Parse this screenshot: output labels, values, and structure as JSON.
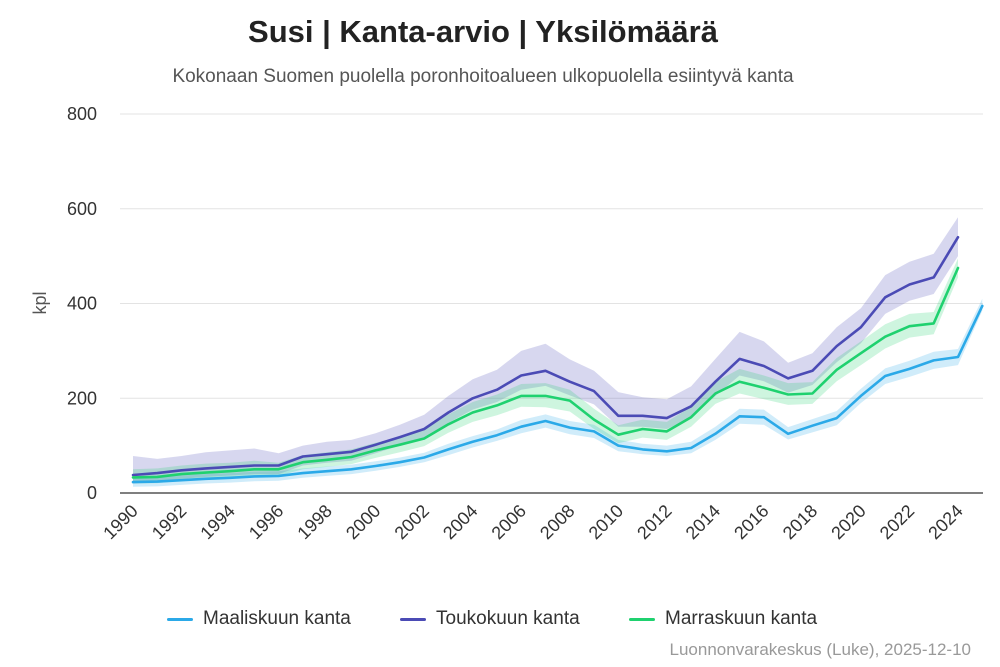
{
  "chart_data": {
    "type": "line",
    "title": "Susi | Kanta-arvio | Yksilömäärä",
    "subtitle": "Kokonaan Suomen puolella poronhoitoalueen ulkopuolella esiintyvä kanta",
    "ylabel": "kpl",
    "xlabel": "",
    "ylim": [
      0,
      800
    ],
    "yticks": [
      "0",
      "200",
      "400",
      "600",
      "800"
    ],
    "xticks": [
      "1990",
      "1992",
      "1994",
      "1996",
      "1998",
      "2000",
      "2002",
      "2004",
      "2006",
      "2008",
      "2010",
      "2012",
      "2014",
      "2016",
      "2018",
      "2020",
      "2022",
      "2024"
    ],
    "grid": true,
    "legend_position": "bottom",
    "series": [
      {
        "name": "Maaliskuun kanta",
        "color": "#2ba9e8",
        "x": [
          1990,
          1991,
          1992,
          1993,
          1994,
          1995,
          1996,
          1997,
          1998,
          1999,
          2000,
          2001,
          2002,
          2003,
          2004,
          2005,
          2006,
          2007,
          2008,
          2009,
          2010,
          2011,
          2012,
          2013,
          2014,
          2015,
          2016,
          2017,
          2018,
          2019,
          2020,
          2021,
          2022,
          2023,
          2024,
          2025
        ],
        "values": [
          23,
          24,
          27,
          30,
          32,
          35,
          36,
          42,
          46,
          50,
          57,
          65,
          75,
          92,
          108,
          122,
          140,
          152,
          138,
          130,
          100,
          92,
          88,
          95,
          125,
          162,
          160,
          125,
          142,
          158,
          205,
          247,
          262,
          280,
          287,
          395
        ],
        "lower": [
          13,
          14,
          17,
          20,
          22,
          25,
          26,
          32,
          36,
          40,
          47,
          55,
          65,
          80,
          96,
          110,
          126,
          138,
          124,
          116,
          88,
          82,
          78,
          84,
          112,
          146,
          144,
          113,
          128,
          143,
          190,
          230,
          245,
          262,
          270,
          385
        ],
        "upper": [
          33,
          34,
          37,
          40,
          42,
          45,
          46,
          52,
          56,
          60,
          67,
          75,
          85,
          104,
          120,
          134,
          154,
          166,
          152,
          144,
          112,
          104,
          100,
          108,
          140,
          178,
          176,
          139,
          156,
          173,
          220,
          263,
          279,
          298,
          304,
          410
        ]
      },
      {
        "name": "Toukokuun kanta",
        "color": "#4b4bb5",
        "x": [
          1990,
          1991,
          1992,
          1993,
          1994,
          1995,
          1996,
          1997,
          1998,
          1999,
          2000,
          2001,
          2002,
          2003,
          2004,
          2005,
          2006,
          2007,
          2008,
          2009,
          2010,
          2011,
          2012,
          2013,
          2014,
          2015,
          2016,
          2017,
          2018,
          2019,
          2020,
          2021,
          2022,
          2023,
          2024
        ],
        "values": [
          38,
          42,
          48,
          52,
          55,
          58,
          58,
          77,
          82,
          87,
          102,
          118,
          135,
          170,
          200,
          218,
          248,
          258,
          235,
          215,
          163,
          163,
          158,
          183,
          235,
          283,
          268,
          242,
          258,
          310,
          350,
          413,
          440,
          455,
          540
        ],
        "lower": [
          20,
          24,
          30,
          34,
          37,
          40,
          40,
          58,
          64,
          68,
          84,
          100,
          115,
          148,
          176,
          192,
          218,
          226,
          206,
          187,
          140,
          140,
          135,
          158,
          205,
          248,
          236,
          212,
          228,
          276,
          316,
          378,
          406,
          420,
          500
        ],
        "upper": [
          78,
          72,
          78,
          86,
          90,
          94,
          84,
          100,
          108,
          112,
          126,
          144,
          165,
          205,
          240,
          260,
          300,
          315,
          282,
          258,
          213,
          202,
          198,
          225,
          283,
          340,
          320,
          275,
          295,
          350,
          390,
          460,
          488,
          505,
          582
        ]
      },
      {
        "name": "Marraskuun kanta",
        "color": "#1fd16f",
        "x": [
          1990,
          1991,
          1992,
          1993,
          1994,
          1995,
          1996,
          1997,
          1998,
          1999,
          2000,
          2001,
          2002,
          2003,
          2004,
          2005,
          2006,
          2007,
          2008,
          2009,
          2010,
          2011,
          2012,
          2013,
          2014,
          2015,
          2016,
          2017,
          2018,
          2019,
          2020,
          2021,
          2022,
          2023,
          2024
        ],
        "values": [
          33,
          34,
          40,
          43,
          46,
          50,
          50,
          65,
          70,
          76,
          90,
          102,
          115,
          145,
          170,
          185,
          205,
          205,
          195,
          155,
          123,
          135,
          130,
          160,
          210,
          235,
          222,
          208,
          210,
          260,
          295,
          330,
          352,
          358,
          475
        ],
        "lower": [
          20,
          21,
          26,
          29,
          32,
          36,
          36,
          50,
          55,
          61,
          74,
          86,
          99,
          127,
          150,
          164,
          182,
          181,
          172,
          135,
          105,
          117,
          112,
          140,
          188,
          210,
          198,
          186,
          188,
          236,
          270,
          305,
          328,
          335,
          455
        ],
        "upper": [
          50,
          52,
          58,
          62,
          64,
          68,
          64,
          80,
          86,
          92,
          106,
          118,
          134,
          166,
          192,
          208,
          230,
          232,
          218,
          178,
          143,
          155,
          150,
          182,
          235,
          262,
          248,
          232,
          234,
          285,
          320,
          356,
          378,
          382,
          495
        ]
      }
    ]
  },
  "credit": "Luonnonvarakeskus (Luke), 2025-12-10"
}
